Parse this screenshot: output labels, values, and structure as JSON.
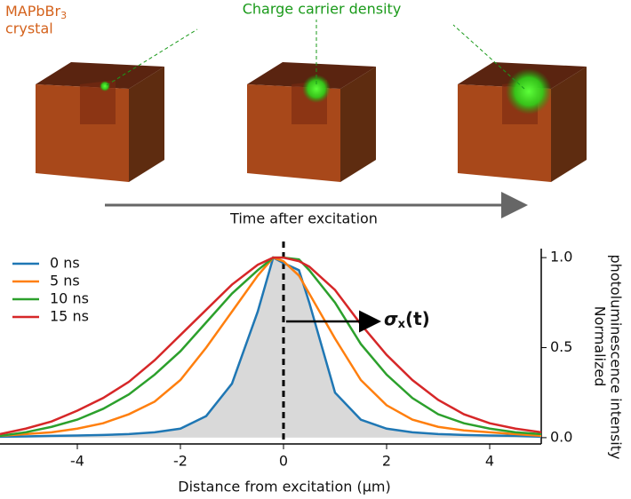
{
  "header": {
    "material": "MAPbBr",
    "material_sub": "3",
    "material_line2": "crystal",
    "density_label": "Charge carrier density",
    "time_label": "Time after excitation"
  },
  "chart_data": {
    "type": "line",
    "x": [
      -5.5,
      -5,
      -4.5,
      -4,
      -3.5,
      -3,
      -2.5,
      -2,
      -1.5,
      -1,
      -0.5,
      -0.2,
      0,
      0.3,
      0.5,
      1,
      1.5,
      2,
      2.5,
      3,
      3.5,
      4,
      4.5,
      5
    ],
    "series": [
      {
        "name": "0 ns",
        "color": "#1f77b4",
        "values": [
          0.005,
          0.007,
          0.01,
          0.012,
          0.015,
          0.02,
          0.03,
          0.05,
          0.12,
          0.3,
          0.7,
          1.0,
          0.97,
          0.93,
          0.75,
          0.25,
          0.1,
          0.05,
          0.03,
          0.02,
          0.015,
          0.012,
          0.01,
          0.005
        ]
      },
      {
        "name": "5 ns",
        "color": "#ff7f0e",
        "values": [
          0.01,
          0.02,
          0.03,
          0.05,
          0.08,
          0.13,
          0.2,
          0.32,
          0.5,
          0.7,
          0.9,
          1.0,
          0.98,
          0.9,
          0.8,
          0.55,
          0.32,
          0.18,
          0.1,
          0.06,
          0.04,
          0.03,
          0.02,
          0.01
        ]
      },
      {
        "name": "10 ns",
        "color": "#2ca02c",
        "values": [
          0.01,
          0.03,
          0.06,
          0.1,
          0.16,
          0.24,
          0.35,
          0.48,
          0.64,
          0.8,
          0.93,
          1.0,
          1.0,
          0.99,
          0.93,
          0.75,
          0.52,
          0.35,
          0.22,
          0.13,
          0.08,
          0.05,
          0.03,
          0.02
        ]
      },
      {
        "name": "15 ns",
        "color": "#d62728",
        "values": [
          0.02,
          0.05,
          0.09,
          0.15,
          0.22,
          0.31,
          0.43,
          0.57,
          0.71,
          0.85,
          0.96,
          1.0,
          1.0,
          0.98,
          0.95,
          0.82,
          0.63,
          0.46,
          0.32,
          0.21,
          0.13,
          0.08,
          0.05,
          0.03
        ]
      }
    ],
    "xlim": [
      -5.5,
      5
    ],
    "xticks": [
      -4,
      -2,
      0,
      2,
      4
    ],
    "ylim": [
      -0.035,
      1.05
    ],
    "yticks": [
      {
        "value": 0,
        "label": "0.0"
      },
      0.5,
      {
        "value": 1,
        "label": "1.0"
      }
    ],
    "xlabel": "Distance from excitation (μm)",
    "ylabel": [
      "Normalized",
      "photoluminescence intensity"
    ],
    "annotation": {
      "symbol": "σ",
      "sub": "x",
      "tail": "(t)"
    },
    "legend": "upper left"
  }
}
